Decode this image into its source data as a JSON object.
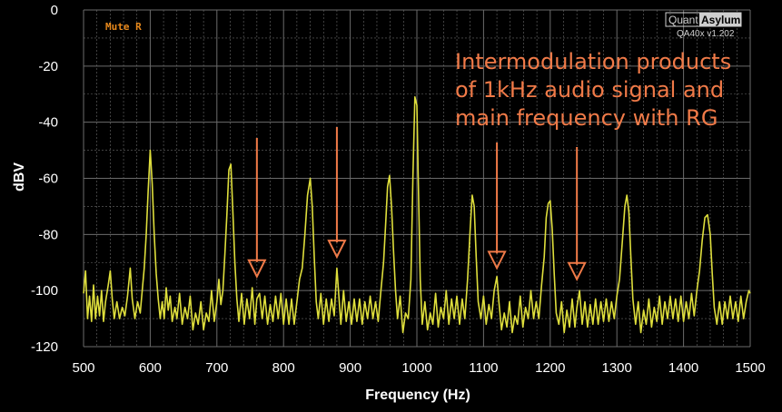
{
  "chart_data": {
    "type": "line",
    "xlabel": "Frequency (Hz)",
    "ylabel": "dBV",
    "xlim": [
      500,
      1500
    ],
    "ylim": [
      -120,
      0
    ],
    "x_ticks": [
      500,
      600,
      700,
      800,
      900,
      1000,
      1100,
      1200,
      1300,
      1400,
      1500
    ],
    "y_ticks": [
      0,
      -20,
      -40,
      -60,
      -80,
      -100,
      -120
    ],
    "grid": true,
    "line_color": "#dede3c",
    "grid_color": "#6b6b6b",
    "annotation_color": "#f07a48",
    "mute_label": "Mute R",
    "brand_left": "Quant",
    "brand_right": "Asylum",
    "version": "QA40x v1.202",
    "annotation_lines": [
      "Intermodulation products",
      "of 1kHz audio signal and",
      "main frequency with RG"
    ],
    "arrow_targets": [
      {
        "x": 760,
        "y": -95
      },
      {
        "x": 880,
        "y": -88
      },
      {
        "x": 1120,
        "y": -92
      },
      {
        "x": 1240,
        "y": -96
      }
    ],
    "series": [
      {
        "values": [
          [
            500,
            -101
          ],
          [
            503,
            -93
          ],
          [
            506,
            -110
          ],
          [
            509,
            -102
          ],
          [
            512,
            -111
          ],
          [
            515,
            -98
          ],
          [
            518,
            -110
          ],
          [
            521,
            -102
          ],
          [
            524,
            -109
          ],
          [
            527,
            -100
          ],
          [
            530,
            -111
          ],
          [
            533,
            -104
          ],
          [
            537,
            -98
          ],
          [
            540,
            -93
          ],
          [
            543,
            -103
          ],
          [
            546,
            -110
          ],
          [
            550,
            -104
          ],
          [
            554,
            -110
          ],
          [
            558,
            -106
          ],
          [
            562,
            -109
          ],
          [
            566,
            -102
          ],
          [
            570,
            -92
          ],
          [
            573,
            -103
          ],
          [
            577,
            -110
          ],
          [
            581,
            -104
          ],
          [
            585,
            -108
          ],
          [
            588,
            -100
          ],
          [
            591,
            -92
          ],
          [
            594,
            -80
          ],
          [
            597,
            -64
          ],
          [
            600,
            -50
          ],
          [
            603,
            -62
          ],
          [
            606,
            -80
          ],
          [
            609,
            -94
          ],
          [
            612,
            -103
          ],
          [
            615,
            -110
          ],
          [
            618,
            -104
          ],
          [
            621,
            -110
          ],
          [
            624,
            -99
          ],
          [
            627,
            -107
          ],
          [
            630,
            -102
          ],
          [
            633,
            -111
          ],
          [
            637,
            -106
          ],
          [
            640,
            -110
          ],
          [
            644,
            -101
          ],
          [
            648,
            -112
          ],
          [
            652,
            -106
          ],
          [
            656,
            -110
          ],
          [
            660,
            -102
          ],
          [
            664,
            -114
          ],
          [
            668,
            -108
          ],
          [
            672,
            -112
          ],
          [
            676,
            -104
          ],
          [
            680,
            -114
          ],
          [
            684,
            -108
          ],
          [
            688,
            -111
          ],
          [
            692,
            -100
          ],
          [
            696,
            -111
          ],
          [
            700,
            -104
          ],
          [
            703,
            -96
          ],
          [
            706,
            -105
          ],
          [
            709,
            -100
          ],
          [
            712,
            -87
          ],
          [
            715,
            -73
          ],
          [
            718,
            -57
          ],
          [
            721,
            -55
          ],
          [
            724,
            -72
          ],
          [
            727,
            -90
          ],
          [
            730,
            -103
          ],
          [
            733,
            -111
          ],
          [
            737,
            -101
          ],
          [
            741,
            -112
          ],
          [
            745,
            -103
          ],
          [
            749,
            -110
          ],
          [
            753,
            -99
          ],
          [
            757,
            -112
          ],
          [
            760,
            -103
          ],
          [
            764,
            -101
          ],
          [
            768,
            -110
          ],
          [
            772,
            -102
          ],
          [
            776,
            -112
          ],
          [
            780,
            -105
          ],
          [
            784,
            -111
          ],
          [
            788,
            -102
          ],
          [
            792,
            -110
          ],
          [
            796,
            -101
          ],
          [
            800,
            -112
          ],
          [
            804,
            -103
          ],
          [
            808,
            -112
          ],
          [
            812,
            -103
          ],
          [
            816,
            -112
          ],
          [
            820,
            -104
          ],
          [
            824,
            -96
          ],
          [
            828,
            -92
          ],
          [
            832,
            -80
          ],
          [
            836,
            -66
          ],
          [
            840,
            -60
          ],
          [
            843,
            -70
          ],
          [
            846,
            -88
          ],
          [
            849,
            -104
          ],
          [
            852,
            -110
          ],
          [
            856,
            -101
          ],
          [
            860,
            -112
          ],
          [
            864,
            -103
          ],
          [
            868,
            -111
          ],
          [
            872,
            -103
          ],
          [
            876,
            -109
          ],
          [
            880,
            -92
          ],
          [
            883,
            -102
          ],
          [
            886,
            -112
          ],
          [
            890,
            -100
          ],
          [
            894,
            -111
          ],
          [
            898,
            -104
          ],
          [
            902,
            -112
          ],
          [
            906,
            -103
          ],
          [
            910,
            -111
          ],
          [
            914,
            -103
          ],
          [
            918,
            -112
          ],
          [
            922,
            -104
          ],
          [
            926,
            -110
          ],
          [
            930,
            -102
          ],
          [
            934,
            -110
          ],
          [
            938,
            -104
          ],
          [
            942,
            -111
          ],
          [
            946,
            -100
          ],
          [
            950,
            -90
          ],
          [
            953,
            -77
          ],
          [
            956,
            -63
          ],
          [
            959,
            -59
          ],
          [
            962,
            -70
          ],
          [
            965,
            -86
          ],
          [
            968,
            -100
          ],
          [
            971,
            -110
          ],
          [
            975,
            -102
          ],
          [
            979,
            -115
          ],
          [
            983,
            -108
          ],
          [
            987,
            -110
          ],
          [
            991,
            -96
          ],
          [
            994,
            -60
          ],
          [
            997,
            -31
          ],
          [
            1000,
            -34
          ],
          [
            1002,
            -60
          ],
          [
            1005,
            -96
          ],
          [
            1008,
            -112
          ],
          [
            1012,
            -104
          ],
          [
            1016,
            -114
          ],
          [
            1020,
            -108
          ],
          [
            1024,
            -112
          ],
          [
            1028,
            -101
          ],
          [
            1032,
            -113
          ],
          [
            1036,
            -106
          ],
          [
            1040,
            -110
          ],
          [
            1044,
            -100
          ],
          [
            1048,
            -112
          ],
          [
            1052,
            -103
          ],
          [
            1056,
            -110
          ],
          [
            1060,
            -102
          ],
          [
            1064,
            -112
          ],
          [
            1068,
            -103
          ],
          [
            1072,
            -110
          ],
          [
            1076,
            -96
          ],
          [
            1080,
            -78
          ],
          [
            1083,
            -66
          ],
          [
            1086,
            -70
          ],
          [
            1089,
            -88
          ],
          [
            1092,
            -104
          ],
          [
            1096,
            -110
          ],
          [
            1100,
            -102
          ],
          [
            1104,
            -112
          ],
          [
            1108,
            -105
          ],
          [
            1112,
            -110
          ],
          [
            1116,
            -100
          ],
          [
            1120,
            -95
          ],
          [
            1123,
            -104
          ],
          [
            1127,
            -114
          ],
          [
            1131,
            -108
          ],
          [
            1135,
            -113
          ],
          [
            1139,
            -104
          ],
          [
            1143,
            -115
          ],
          [
            1147,
            -109
          ],
          [
            1151,
            -112
          ],
          [
            1155,
            -102
          ],
          [
            1159,
            -113
          ],
          [
            1163,
            -106
          ],
          [
            1167,
            -110
          ],
          [
            1171,
            -100
          ],
          [
            1175,
            -110
          ],
          [
            1179,
            -104
          ],
          [
            1183,
            -110
          ],
          [
            1187,
            -98
          ],
          [
            1191,
            -88
          ],
          [
            1194,
            -74
          ],
          [
            1197,
            -69
          ],
          [
            1200,
            -68
          ],
          [
            1203,
            -78
          ],
          [
            1206,
            -94
          ],
          [
            1209,
            -108
          ],
          [
            1213,
            -112
          ],
          [
            1217,
            -104
          ],
          [
            1221,
            -115
          ],
          [
            1225,
            -107
          ],
          [
            1229,
            -113
          ],
          [
            1233,
            -103
          ],
          [
            1237,
            -113
          ],
          [
            1240,
            -106
          ],
          [
            1244,
            -100
          ],
          [
            1248,
            -112
          ],
          [
            1252,
            -104
          ],
          [
            1256,
            -113
          ],
          [
            1260,
            -105
          ],
          [
            1264,
            -112
          ],
          [
            1268,
            -103
          ],
          [
            1272,
            -112
          ],
          [
            1276,
            -104
          ],
          [
            1280,
            -111
          ],
          [
            1284,
            -103
          ],
          [
            1288,
            -111
          ],
          [
            1292,
            -104
          ],
          [
            1296,
            -110
          ],
          [
            1300,
            -102
          ],
          [
            1304,
            -96
          ],
          [
            1308,
            -83
          ],
          [
            1312,
            -70
          ],
          [
            1315,
            -66
          ],
          [
            1318,
            -72
          ],
          [
            1321,
            -88
          ],
          [
            1324,
            -103
          ],
          [
            1328,
            -112
          ],
          [
            1332,
            -104
          ],
          [
            1336,
            -115
          ],
          [
            1340,
            -107
          ],
          [
            1344,
            -112
          ],
          [
            1348,
            -103
          ],
          [
            1352,
            -113
          ],
          [
            1356,
            -106
          ],
          [
            1360,
            -111
          ],
          [
            1364,
            -102
          ],
          [
            1368,
            -112
          ],
          [
            1372,
            -104
          ],
          [
            1376,
            -110
          ],
          [
            1380,
            -102
          ],
          [
            1384,
            -110
          ],
          [
            1388,
            -103
          ],
          [
            1392,
            -111
          ],
          [
            1396,
            -102
          ],
          [
            1400,
            -111
          ],
          [
            1404,
            -104
          ],
          [
            1408,
            -110
          ],
          [
            1412,
            -101
          ],
          [
            1416,
            -109
          ],
          [
            1420,
            -100
          ],
          [
            1424,
            -93
          ],
          [
            1428,
            -82
          ],
          [
            1432,
            -74
          ],
          [
            1436,
            -73
          ],
          [
            1440,
            -80
          ],
          [
            1443,
            -94
          ],
          [
            1446,
            -106
          ],
          [
            1450,
            -112
          ],
          [
            1454,
            -104
          ],
          [
            1458,
            -112
          ],
          [
            1462,
            -104
          ],
          [
            1466,
            -110
          ],
          [
            1470,
            -102
          ],
          [
            1474,
            -110
          ],
          [
            1478,
            -104
          ],
          [
            1482,
            -111
          ],
          [
            1486,
            -102
          ],
          [
            1490,
            -110
          ],
          [
            1494,
            -104
          ],
          [
            1498,
            -100
          ],
          [
            1500,
            -101
          ]
        ]
      }
    ]
  }
}
